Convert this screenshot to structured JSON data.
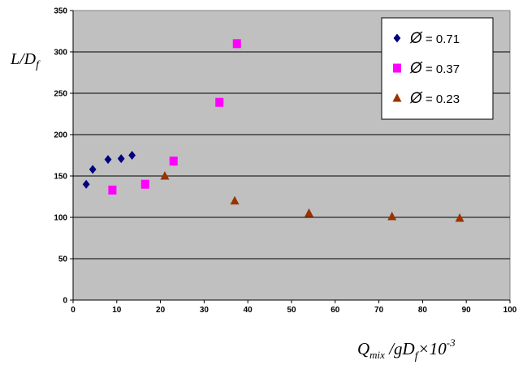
{
  "chart_data": {
    "type": "scatter",
    "xlabel": {
      "main": "Q",
      "sub1": "mix",
      "mid": " /gD",
      "sub2": "f",
      "tail": "×10",
      "sup": "-3"
    },
    "ylabel": {
      "main": "L/D",
      "sub": "f"
    },
    "xlim": [
      0,
      100
    ],
    "ylim": [
      0,
      350
    ],
    "x_ticks": [
      "0",
      "10",
      "20",
      "30",
      "40",
      "50",
      "60",
      "70",
      "80",
      "90",
      "100"
    ],
    "y_ticks": [
      "0",
      "50",
      "100",
      "150",
      "200",
      "250",
      "300",
      "350"
    ],
    "grid": "horizontal",
    "plot_background": "#c0c0c0",
    "legend_position": "top-right",
    "legend_symbol": "Ø",
    "series": [
      {
        "label": " = 0.71",
        "marker": "diamond",
        "color": "#000080",
        "points": [
          [
            3,
            140
          ],
          [
            4.5,
            158
          ],
          [
            8,
            170
          ],
          [
            11,
            171
          ],
          [
            13.5,
            175
          ]
        ]
      },
      {
        "label": " = 0.37",
        "marker": "square",
        "color": "#ff00ff",
        "points": [
          [
            9,
            133
          ],
          [
            16.5,
            140
          ],
          [
            23,
            168
          ],
          [
            33.5,
            239
          ],
          [
            37.5,
            310
          ]
        ]
      },
      {
        "label": "  = 0.23",
        "marker": "triangle",
        "color": "#993300",
        "points": [
          [
            21,
            150
          ],
          [
            37,
            120
          ],
          [
            54,
            105
          ],
          [
            73,
            101
          ],
          [
            88.5,
            99
          ]
        ]
      }
    ]
  }
}
